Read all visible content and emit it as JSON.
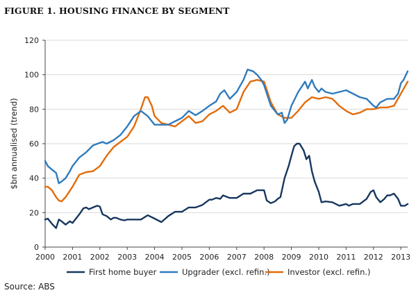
{
  "figure_title": "FIGURE 1. HOUSING FINANCE BY SEGMENT",
  "source": "Source: ABS",
  "chart_data": {
    "type": "line",
    "ylabel": "$bn annualised (trend)",
    "ylim": [
      0,
      120
    ],
    "yticks": [
      0,
      20,
      40,
      60,
      80,
      100,
      120
    ],
    "xlim": [
      2000,
      2013.25
    ],
    "xticks": [
      2000,
      2001,
      2002,
      2003,
      2004,
      2005,
      2006,
      2007,
      2008,
      2009,
      2010,
      2011,
      2012,
      2013
    ],
    "grid": true,
    "legend_position": "bottom",
    "series": [
      {
        "name": "First home buyer",
        "color": "#17375e",
        "x": [
          2000.0,
          2000.1,
          2000.25,
          2000.4,
          2000.5,
          2000.6,
          2000.75,
          2000.9,
          2001.0,
          2001.1,
          2001.25,
          2001.4,
          2001.5,
          2001.6,
          2001.75,
          2001.9,
          2002.0,
          2002.1,
          2002.25,
          2002.4,
          2002.5,
          2002.6,
          2002.75,
          2002.9,
          2003.0,
          2003.25,
          2003.5,
          2003.75,
          2004.0,
          2004.25,
          2004.5,
          2004.75,
          2005.0,
          2005.25,
          2005.5,
          2005.75,
          2006.0,
          2006.1,
          2006.25,
          2006.4,
          2006.5,
          2006.75,
          2007.0,
          2007.25,
          2007.5,
          2007.75,
          2008.0,
          2008.1,
          2008.25,
          2008.4,
          2008.5,
          2008.6,
          2008.75,
          2008.9,
          2009.0,
          2009.1,
          2009.2,
          2009.3,
          2009.45,
          2009.55,
          2009.65,
          2009.75,
          2009.85,
          2010.0,
          2010.1,
          2010.25,
          2010.5,
          2010.75,
          2011.0,
          2011.1,
          2011.25,
          2011.5,
          2011.75,
          2011.9,
          2012.0,
          2012.1,
          2012.25,
          2012.4,
          2012.5,
          2012.6,
          2012.75,
          2012.9,
          2013.0,
          2013.15,
          2013.25
        ],
        "values": [
          16,
          16.5,
          13.5,
          11,
          16,
          15,
          13,
          15,
          14,
          16,
          19,
          22.5,
          23,
          22,
          23,
          24,
          23.5,
          19,
          18,
          16,
          17,
          17,
          16,
          15.5,
          16,
          16,
          16,
          18.5,
          16.5,
          14.5,
          18,
          20.5,
          20.5,
          23,
          23,
          24.5,
          27.5,
          27.5,
          28.5,
          28,
          30,
          28.5,
          28.5,
          31,
          31,
          33,
          33,
          27,
          25.5,
          26.5,
          28,
          29,
          40,
          47,
          53,
          58.5,
          60,
          60,
          56,
          51,
          53,
          44,
          38,
          32,
          26,
          26.5,
          26,
          24,
          25,
          24,
          25,
          25,
          28,
          32,
          33,
          29,
          26,
          28,
          30,
          30,
          31,
          28,
          24,
          24,
          25
        ]
      },
      {
        "name": "Upgrader (excl. refin.)",
        "color": "#2f7bbd",
        "x": [
          2000.0,
          2000.1,
          2000.25,
          2000.4,
          2000.5,
          2000.6,
          2000.75,
          2000.9,
          2001.0,
          2001.25,
          2001.5,
          2001.75,
          2002.0,
          2002.1,
          2002.25,
          2002.5,
          2002.75,
          2003.0,
          2003.25,
          2003.5,
          2003.75,
          2004.0,
          2004.25,
          2004.5,
          2004.75,
          2005.0,
          2005.25,
          2005.5,
          2005.75,
          2006.0,
          2006.25,
          2006.4,
          2006.55,
          2006.75,
          2007.0,
          2007.25,
          2007.4,
          2007.6,
          2007.75,
          2007.9,
          2008.0,
          2008.25,
          2008.5,
          2008.65,
          2008.75,
          2008.85,
          2009.0,
          2009.25,
          2009.5,
          2009.6,
          2009.75,
          2009.85,
          2010.0,
          2010.1,
          2010.25,
          2010.5,
          2010.75,
          2011.0,
          2011.25,
          2011.5,
          2011.75,
          2012.0,
          2012.1,
          2012.25,
          2012.5,
          2012.75,
          2012.9,
          2013.0,
          2013.1,
          2013.25
        ],
        "values": [
          50,
          47,
          45,
          43,
          37,
          38,
          40,
          44,
          47,
          52,
          55,
          59,
          60.5,
          61,
          60,
          62,
          65,
          70,
          76,
          79,
          76,
          71,
          71,
          71,
          73,
          75,
          79,
          76.5,
          79,
          82,
          84.5,
          89,
          91,
          86,
          90,
          97,
          103,
          102,
          100,
          97,
          94,
          82,
          77,
          78,
          72,
          74,
          82,
          90,
          96,
          92,
          97,
          93,
          90,
          92,
          90,
          89,
          90,
          91,
          89,
          87,
          86,
          82,
          81,
          84,
          86,
          86,
          89,
          95,
          97,
          102
        ]
      },
      {
        "name": "Investor (excl. refin.)",
        "color": "#e36c0a",
        "x": [
          2000.0,
          2000.1,
          2000.25,
          2000.4,
          2000.5,
          2000.6,
          2000.75,
          2001.0,
          2001.25,
          2001.5,
          2001.75,
          2002.0,
          2002.25,
          2002.5,
          2002.75,
          2003.0,
          2003.25,
          2003.5,
          2003.65,
          2003.75,
          2003.9,
          2004.0,
          2004.25,
          2004.5,
          2004.75,
          2005.0,
          2005.25,
          2005.5,
          2005.75,
          2006.0,
          2006.25,
          2006.5,
          2006.75,
          2007.0,
          2007.25,
          2007.5,
          2007.75,
          2008.0,
          2008.25,
          2008.5,
          2008.75,
          2009.0,
          2009.25,
          2009.5,
          2009.75,
          2010.0,
          2010.25,
          2010.5,
          2010.75,
          2011.0,
          2011.25,
          2011.5,
          2011.75,
          2012.0,
          2012.25,
          2012.5,
          2012.75,
          2013.0,
          2013.25
        ],
        "values": [
          35,
          35,
          33,
          29,
          27,
          26.5,
          29,
          35,
          42,
          43.5,
          44,
          47,
          53,
          58,
          61,
          64,
          70,
          80,
          87,
          87,
          82,
          76,
          72,
          71,
          70,
          73,
          76,
          72,
          73,
          77,
          79,
          82,
          78,
          80,
          90,
          96,
          97,
          96,
          84,
          77,
          75,
          75,
          79,
          84,
          87,
          86,
          87,
          86,
          82,
          79,
          77,
          78,
          80,
          80,
          81,
          81,
          82,
          89,
          96
        ]
      }
    ]
  }
}
